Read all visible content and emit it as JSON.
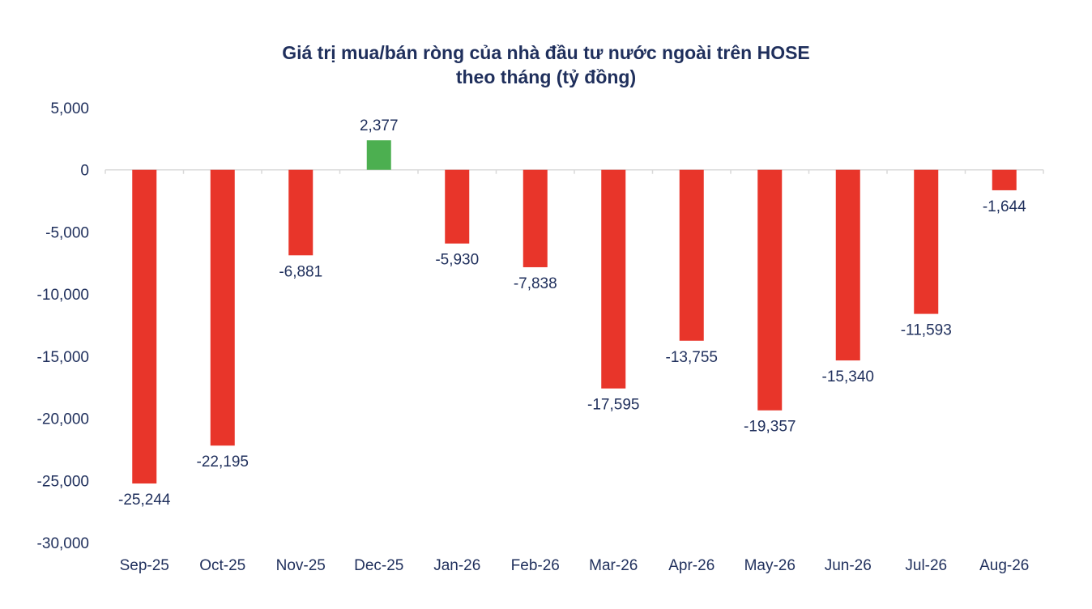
{
  "chart_data": {
    "type": "bar",
    "title_line1": "Giá trị mua/bán ròng của nhà đầu tư nước ngoài trên HOSE",
    "title_line2": "theo tháng (tỷ đồng)",
    "categories": [
      "Sep-25",
      "Oct-25",
      "Nov-25",
      "Dec-25",
      "Jan-26",
      "Feb-26",
      "Mar-26",
      "Apr-26",
      "May-26",
      "Jun-26",
      "Jul-26",
      "Aug-26"
    ],
    "values": [
      -25244,
      -22195,
      -6881,
      2377,
      -5930,
      -7838,
      -17595,
      -13755,
      -19357,
      -15340,
      -11593,
      -1644
    ],
    "data_labels": [
      "-25,244",
      "-22,195",
      "-6,881",
      "2,377",
      "-5,930",
      "-7,838",
      "-17,595",
      "-13,755",
      "-19,357",
      "-15,340",
      "-11,593",
      "-1,644"
    ],
    "y_ticks": [
      5000,
      0,
      -5000,
      -10000,
      -15000,
      -20000,
      -25000,
      -30000
    ],
    "y_tick_labels": [
      "5,000",
      "0",
      "-5,000",
      "-10,000",
      "-15,000",
      "-20,000",
      "-25,000",
      "-30,000"
    ],
    "ylim": [
      -30000,
      5000
    ],
    "xlabel": "",
    "ylabel": "",
    "grid": false,
    "legend": "none",
    "colors": {
      "positive": "#4caf50",
      "negative": "#e8352a",
      "text": "#1f2f5c",
      "axis": "#d9d9d9"
    }
  }
}
